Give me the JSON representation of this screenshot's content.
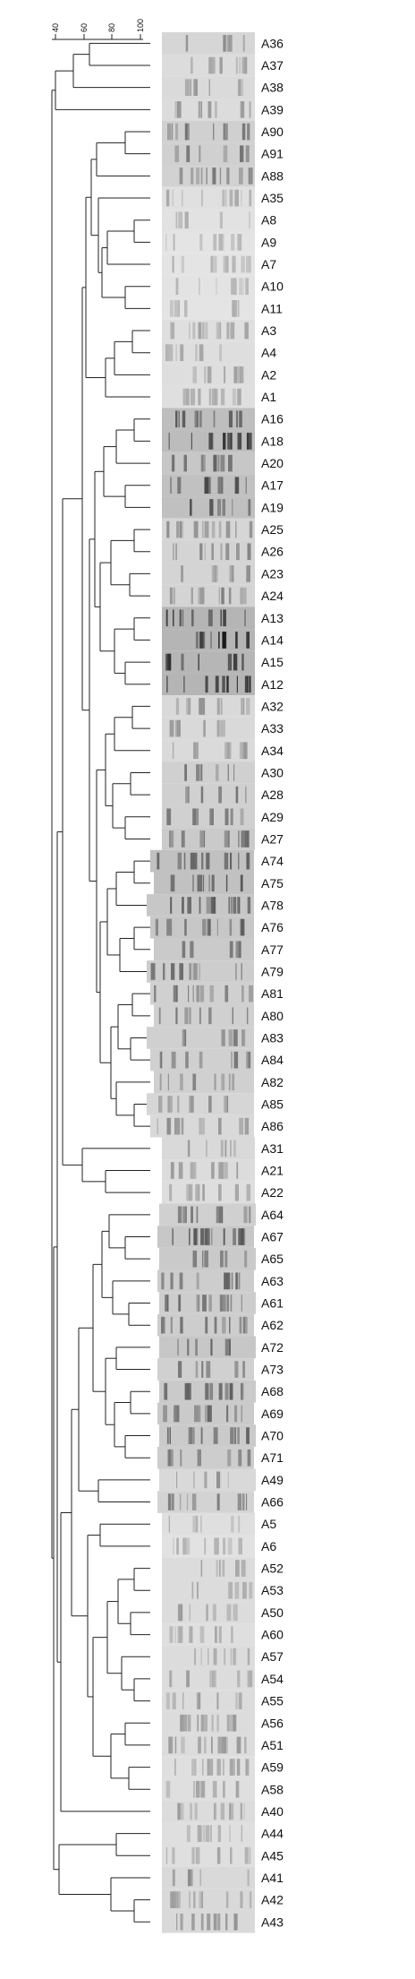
{
  "scale": {
    "ticks": [
      "40",
      "60",
      "80",
      "100"
    ]
  },
  "isolates": [
    "A36",
    "A37",
    "A38",
    "A39",
    "A90",
    "A91",
    "A88",
    "A35",
    "A8",
    "A9",
    "A7",
    "A10",
    "A11",
    "A3",
    "A4",
    "A2",
    "A1",
    "A16",
    "A18",
    "A20",
    "A17",
    "A19",
    "A25",
    "A26",
    "A23",
    "A24",
    "A13",
    "A14",
    "A15",
    "A12",
    "A32",
    "A33",
    "A34",
    "A30",
    "A28",
    "A29",
    "A27",
    "A74",
    "A75",
    "A78",
    "A76",
    "A77",
    "A79",
    "A81",
    "A80",
    "A83",
    "A84",
    "A82",
    "A85",
    "A86",
    "A31",
    "A21",
    "A22",
    "A64",
    "A67",
    "A65",
    "A63",
    "A61",
    "A62",
    "A72",
    "A73",
    "A68",
    "A69",
    "A70",
    "A71",
    "A49",
    "A66",
    "A5",
    "A6",
    "A52",
    "A53",
    "A50",
    "A60",
    "A57",
    "A54",
    "A55",
    "A56",
    "A51",
    "A59",
    "A58",
    "A40",
    "A44",
    "A45",
    "A41",
    "A42",
    "A43"
  ],
  "gel_intensity": [
    0.35,
    0.25,
    0.28,
    0.25,
    0.45,
    0.45,
    0.42,
    0.18,
    0.15,
    0.12,
    0.12,
    0.13,
    0.12,
    0.2,
    0.22,
    0.22,
    0.2,
    0.75,
    0.78,
    0.6,
    0.7,
    0.72,
    0.35,
    0.38,
    0.38,
    0.38,
    0.9,
    0.9,
    0.88,
    0.9,
    0.3,
    0.3,
    0.28,
    0.45,
    0.45,
    0.45,
    0.55,
    0.7,
    0.7,
    0.6,
    0.6,
    0.55,
    0.5,
    0.45,
    0.45,
    0.45,
    0.45,
    0.45,
    0.35,
    0.3,
    0.3,
    0.25,
    0.22,
    0.45,
    0.6,
    0.55,
    0.5,
    0.5,
    0.5,
    0.6,
    0.45,
    0.55,
    0.55,
    0.55,
    0.5,
    0.3,
    0.4,
    0.2,
    0.15,
    0.25,
    0.25,
    0.25,
    0.2,
    0.25,
    0.25,
    0.25,
    0.25,
    0.25,
    0.2,
    0.2,
    0.25,
    0.2,
    0.2,
    0.3,
    0.3,
    0.3
  ]
}
